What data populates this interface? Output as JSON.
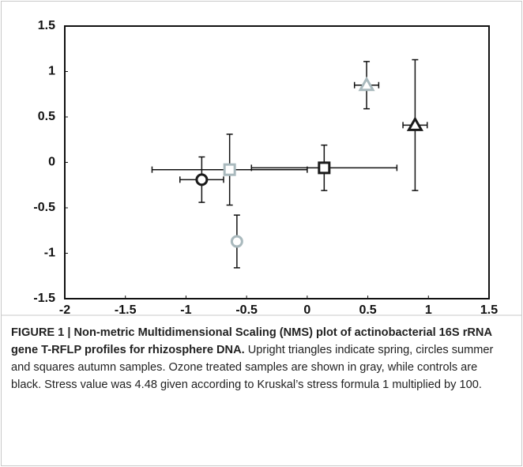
{
  "chart_data": {
    "type": "scatter",
    "xlim": [
      -2,
      1.5
    ],
    "xticks": [
      -2,
      -1.5,
      -1,
      -0.5,
      0,
      0.5,
      1,
      1.5
    ],
    "ylim": [
      -1.5,
      1.5
    ],
    "yticks": [
      -1.5,
      -1,
      -0.5,
      0,
      0.5,
      1,
      1.5
    ],
    "series": [
      {
        "marker": "circle",
        "color": "#1a1a1a",
        "x": [
          -0.87
        ],
        "values": [
          -0.19
        ],
        "xerr": [
          0.18
        ],
        "yerr": [
          0.25
        ]
      },
      {
        "marker": "square",
        "color": "#a9b9bd",
        "x": [
          -0.64
        ],
        "values": [
          -0.08
        ],
        "xerr": [
          0.64
        ],
        "yerr": [
          0.39
        ]
      },
      {
        "marker": "circle",
        "color": "#a9b9bd",
        "x": [
          -0.58
        ],
        "values": [
          -0.87
        ],
        "xerr": [
          0.02
        ],
        "yerr": [
          0.29
        ]
      },
      {
        "marker": "square",
        "color": "#1a1a1a",
        "x": [
          0.14
        ],
        "values": [
          -0.06
        ],
        "xerr": [
          0.6
        ],
        "yerr": [
          0.25
        ]
      },
      {
        "marker": "triangle",
        "color": "#a9b9bd",
        "x": [
          0.49
        ],
        "values": [
          0.85
        ],
        "xerr": [
          0.1
        ],
        "yerr": [
          0.26
        ]
      },
      {
        "marker": "triangle",
        "color": "#1a1a1a",
        "x": [
          0.89
        ],
        "values": [
          0.41
        ],
        "xerr": [
          0.1
        ],
        "yerr": [
          0.72
        ]
      }
    ]
  },
  "caption": {
    "title": "FIGURE 1 | Non-metric Multidimensional Scaling (NMS) plot of actinobacterial 16S rRNA gene T-RFLP profiles for rhizosphere DNA.",
    "text": "Upright triangles indicate spring, circles summer and squares autumn samples. Ozone treated samples are shown in gray, while controls are black. Stress value was 4.48 given according to Kruskal’s stress formula 1 multiplied by 100."
  }
}
